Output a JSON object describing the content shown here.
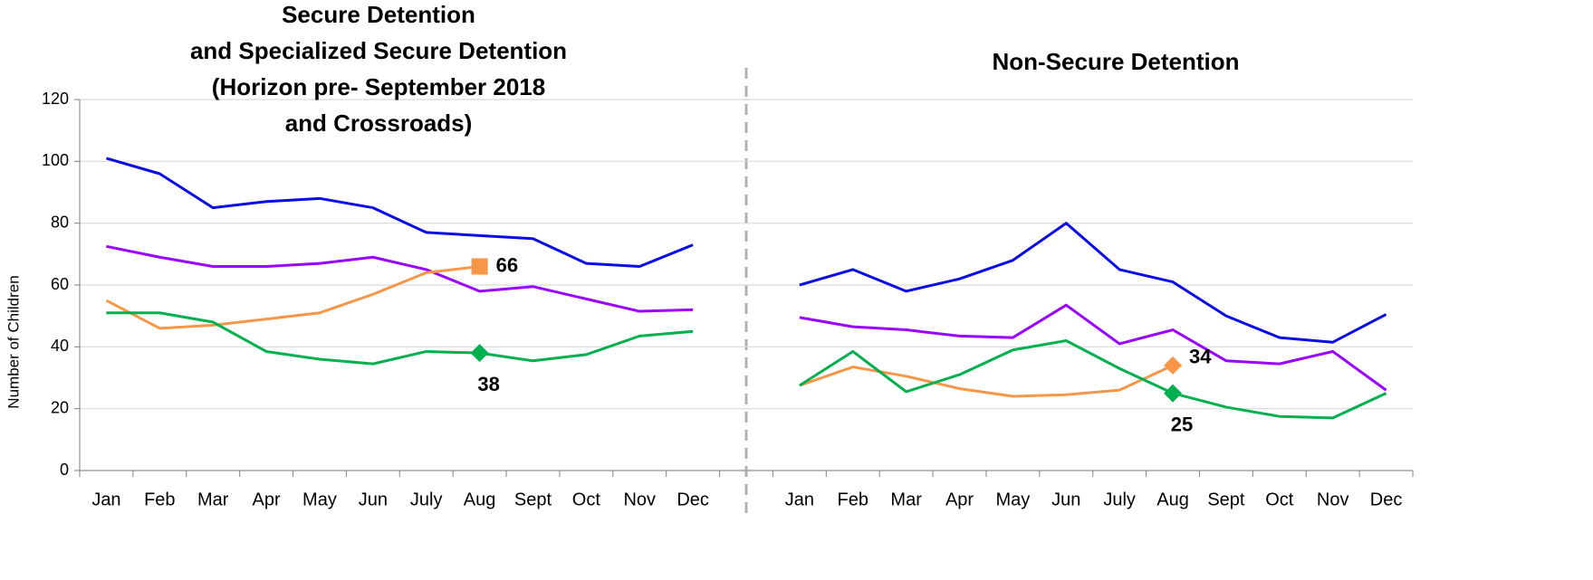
{
  "chart_data": [
    {
      "type": "line",
      "title": [
        "Secure Detention",
        "and Specialized Secure Detention",
        "(Horizon pre- September 2018",
        "and Crossroads)"
      ],
      "y_label": "Number of Children",
      "categories": [
        "Jan",
        "Feb",
        "Mar",
        "Apr",
        "May",
        "Jun",
        "July",
        "Aug",
        "Sept",
        "Oct",
        "Nov",
        "Dec"
      ],
      "ylim": [
        0,
        120
      ],
      "yticks": [
        0,
        20,
        40,
        60,
        80,
        100,
        120
      ],
      "grid": true,
      "series": [
        {
          "color": "#0a0ae6",
          "values": [
            101,
            96,
            85,
            87,
            88,
            85,
            77,
            76,
            75,
            67,
            66,
            73
          ]
        },
        {
          "color": "#9900ff",
          "values": [
            72.5,
            69,
            66,
            66,
            67,
            69,
            65,
            58,
            59.5,
            55.5,
            51.5,
            52
          ]
        },
        {
          "color": "#f79646",
          "values": [
            55,
            46,
            47,
            49,
            51,
            57,
            64,
            66,
            null,
            null,
            null,
            null
          ],
          "marker": "square",
          "marker_index": 7,
          "label_position": "right"
        },
        {
          "color": "#00b050",
          "values": [
            51,
            51,
            48,
            38.5,
            36,
            34.5,
            38.5,
            38,
            35.5,
            37.5,
            43.5,
            45
          ],
          "marker": "diamond",
          "marker_index": 7,
          "label_position": "below"
        }
      ]
    },
    {
      "type": "line",
      "title": [
        "Non-Secure Detention"
      ],
      "categories": [
        "Jan",
        "Feb",
        "Mar",
        "Apr",
        "May",
        "Jun",
        "July",
        "Aug",
        "Sept",
        "Oct",
        "Nov",
        "Dec"
      ],
      "ylim": [
        0,
        120
      ],
      "series": [
        {
          "color": "#0a0ae6",
          "values": [
            60,
            65,
            58,
            62,
            68,
            80,
            65,
            61,
            50,
            43,
            41.5,
            50.5
          ]
        },
        {
          "color": "#9900ff",
          "values": [
            49.5,
            46.5,
            45.5,
            43.5,
            43,
            53.5,
            41,
            45.5,
            35.5,
            34.5,
            38.5,
            26
          ]
        },
        {
          "color": "#f79646",
          "values": [
            27.5,
            33.5,
            30.5,
            26.5,
            24,
            24.5,
            26,
            34,
            null,
            null,
            null,
            null
          ],
          "marker": "diamond",
          "marker_index": 7,
          "label_position": "right"
        },
        {
          "color": "#00b050",
          "values": [
            27.5,
            38.5,
            25.5,
            31,
            39,
            42,
            33,
            25,
            20.5,
            17.5,
            17,
            25
          ],
          "marker": "diamond",
          "marker_index": 7,
          "label_position": "below"
        }
      ]
    }
  ]
}
